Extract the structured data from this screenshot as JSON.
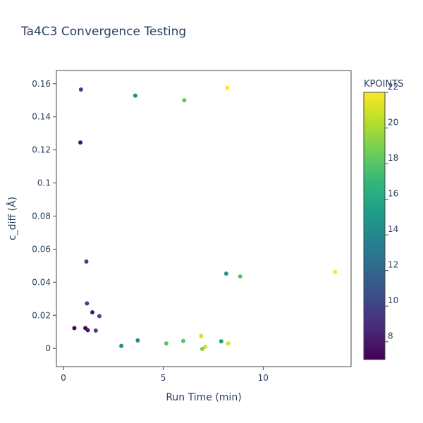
{
  "chart_data": {
    "type": "scatter",
    "title": "Ta4C3 Convergence Testing",
    "xlabel": "Run Time (min)",
    "ylabel": "c_diff (Å)",
    "xlim": [
      -0.35,
      14.4
    ],
    "ylim": [
      -0.011,
      0.168
    ],
    "x_ticks": [
      0,
      5,
      10
    ],
    "y_ticks": [
      0,
      0.02,
      0.04,
      0.06,
      0.08,
      0.1,
      0.12,
      0.14,
      0.16
    ],
    "y_tick_labels": [
      "0",
      "0.02",
      "0.04",
      "0.06",
      "0.08",
      "0.1",
      "0.12",
      "0.14",
      "0.16"
    ],
    "grid": false,
    "colorbar": {
      "title": "KPOINTS",
      "range": [
        7,
        22
      ],
      "ticks": [
        8,
        10,
        12,
        14,
        16,
        18,
        20,
        22
      ],
      "colorscale": [
        "#440154",
        "#482878",
        "#3e4989",
        "#31688e",
        "#26828e",
        "#1f9e89",
        "#35b779",
        "#6ece58",
        "#b5de2b",
        "#fde725"
      ]
    },
    "points": [
      {
        "x": 0.88,
        "y": 0.1565,
        "k": 10
      },
      {
        "x": 0.85,
        "y": 0.1245,
        "k": 8
      },
      {
        "x": 3.6,
        "y": 0.1528,
        "k": 14
      },
      {
        "x": 6.05,
        "y": 0.15,
        "k": 18
      },
      {
        "x": 8.2,
        "y": 0.1575,
        "k": 22
      },
      {
        "x": 1.15,
        "y": 0.0525,
        "k": 10
      },
      {
        "x": 1.18,
        "y": 0.0272,
        "k": 10
      },
      {
        "x": 1.45,
        "y": 0.0218,
        "k": 8
      },
      {
        "x": 1.8,
        "y": 0.0195,
        "k": 10
      },
      {
        "x": 0.55,
        "y": 0.0123,
        "k": 7
      },
      {
        "x": 1.1,
        "y": 0.0123,
        "k": 7
      },
      {
        "x": 1.22,
        "y": 0.011,
        "k": 8
      },
      {
        "x": 1.62,
        "y": 0.0108,
        "k": 10
      },
      {
        "x": 2.9,
        "y": 0.0015,
        "k": 14
      },
      {
        "x": 3.72,
        "y": 0.0048,
        "k": 14
      },
      {
        "x": 5.15,
        "y": 0.003,
        "k": 18
      },
      {
        "x": 6.0,
        "y": 0.0045,
        "k": 18
      },
      {
        "x": 6.9,
        "y": 0.0075,
        "k": 21
      },
      {
        "x": 7.1,
        "y": 0.001,
        "k": 21
      },
      {
        "x": 6.95,
        "y": -0.0003,
        "k": 19
      },
      {
        "x": 7.9,
        "y": 0.0043,
        "k": 15
      },
      {
        "x": 8.25,
        "y": 0.003,
        "k": 21
      },
      {
        "x": 8.15,
        "y": 0.0452,
        "k": 15
      },
      {
        "x": 8.85,
        "y": 0.0435,
        "k": 18
      },
      {
        "x": 13.6,
        "y": 0.0462,
        "k": 22
      }
    ]
  }
}
